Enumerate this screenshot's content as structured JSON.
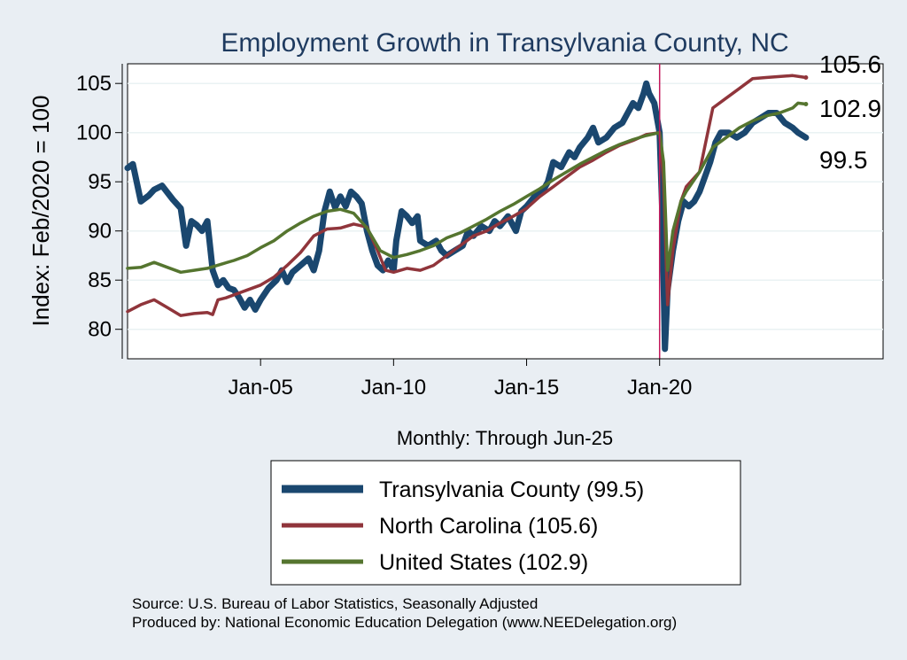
{
  "chart_data": {
    "type": "line",
    "title": "Employment Growth in Transylvania  County, NC",
    "xlabel": "Monthly: Through Jun-25",
    "ylabel": "Index: Feb/2020 = 100",
    "ylim": [
      77,
      107
    ],
    "y_ticks": [
      80,
      85,
      90,
      95,
      100,
      105
    ],
    "x_range": [
      2000.0,
      2028.4
    ],
    "x_ticks": [
      {
        "label": "Jan-05",
        "value": 2005.0
      },
      {
        "label": "Jan-10",
        "value": 2010.0
      },
      {
        "label": "Jan-15",
        "value": 2015.0
      },
      {
        "label": "Jan-20",
        "value": 2020.0
      }
    ],
    "reference_line_x": 2020.0,
    "series": [
      {
        "name": "Transylvania  County",
        "legend": "Transylvania  County (99.5)",
        "end_label": "99.5",
        "color": "#1a476f",
        "points": [
          [
            2000.0,
            96.4
          ],
          [
            2000.2,
            96.8
          ],
          [
            2000.5,
            93.0
          ],
          [
            2000.8,
            93.6
          ],
          [
            2001.0,
            94.2
          ],
          [
            2001.3,
            94.6
          ],
          [
            2001.7,
            93.2
          ],
          [
            2002.0,
            92.3
          ],
          [
            2002.2,
            88.5
          ],
          [
            2002.4,
            91.0
          ],
          [
            2002.6,
            90.6
          ],
          [
            2002.8,
            90.0
          ],
          [
            2003.0,
            91.0
          ],
          [
            2003.2,
            86.0
          ],
          [
            2003.4,
            84.5
          ],
          [
            2003.6,
            85.0
          ],
          [
            2003.8,
            84.2
          ],
          [
            2004.0,
            84.0
          ],
          [
            2004.2,
            83.2
          ],
          [
            2004.4,
            82.2
          ],
          [
            2004.6,
            83.0
          ],
          [
            2004.8,
            82.0
          ],
          [
            2005.0,
            83.0
          ],
          [
            2005.3,
            84.2
          ],
          [
            2005.6,
            85.0
          ],
          [
            2005.8,
            86.0
          ],
          [
            2006.0,
            84.8
          ],
          [
            2006.2,
            85.8
          ],
          [
            2006.5,
            86.5
          ],
          [
            2006.8,
            87.2
          ],
          [
            2007.0,
            86.0
          ],
          [
            2007.2,
            88.0
          ],
          [
            2007.4,
            92.0
          ],
          [
            2007.6,
            94.0
          ],
          [
            2007.8,
            92.4
          ],
          [
            2008.0,
            93.5
          ],
          [
            2008.2,
            92.5
          ],
          [
            2008.4,
            94.0
          ],
          [
            2008.6,
            93.5
          ],
          [
            2008.8,
            92.8
          ],
          [
            2009.0,
            90.0
          ],
          [
            2009.2,
            88.0
          ],
          [
            2009.4,
            86.5
          ],
          [
            2009.6,
            86.0
          ],
          [
            2009.8,
            87.0
          ],
          [
            2010.0,
            86.0
          ],
          [
            2010.1,
            89.0
          ],
          [
            2010.3,
            92.0
          ],
          [
            2010.5,
            91.5
          ],
          [
            2010.7,
            90.8
          ],
          [
            2010.9,
            91.5
          ],
          [
            2011.0,
            89.0
          ],
          [
            2011.3,
            88.5
          ],
          [
            2011.6,
            89.0
          ],
          [
            2011.8,
            88.0
          ],
          [
            2012.0,
            87.5
          ],
          [
            2012.3,
            88.0
          ],
          [
            2012.6,
            88.5
          ],
          [
            2012.8,
            90.0
          ],
          [
            2013.0,
            89.5
          ],
          [
            2013.3,
            90.5
          ],
          [
            2013.6,
            90.0
          ],
          [
            2013.8,
            91.0
          ],
          [
            2014.0,
            90.5
          ],
          [
            2014.3,
            91.5
          ],
          [
            2014.6,
            90.0
          ],
          [
            2014.8,
            92.0
          ],
          [
            2015.0,
            92.5
          ],
          [
            2015.3,
            93.5
          ],
          [
            2015.6,
            94.0
          ],
          [
            2015.8,
            95.0
          ],
          [
            2016.0,
            97.0
          ],
          [
            2016.3,
            96.5
          ],
          [
            2016.6,
            98.0
          ],
          [
            2016.8,
            97.5
          ],
          [
            2017.0,
            98.5
          ],
          [
            2017.3,
            99.5
          ],
          [
            2017.5,
            100.5
          ],
          [
            2017.7,
            99.0
          ],
          [
            2018.0,
            99.5
          ],
          [
            2018.3,
            100.5
          ],
          [
            2018.6,
            101.0
          ],
          [
            2018.8,
            102.0
          ],
          [
            2019.0,
            103.0
          ],
          [
            2019.2,
            102.5
          ],
          [
            2019.4,
            104.0
          ],
          [
            2019.5,
            105.0
          ],
          [
            2019.6,
            104.0
          ],
          [
            2019.8,
            103.0
          ],
          [
            2020.0,
            100.0
          ],
          [
            2020.1,
            92.0
          ],
          [
            2020.2,
            78.0
          ],
          [
            2020.3,
            84.0
          ],
          [
            2020.5,
            88.0
          ],
          [
            2020.7,
            91.0
          ],
          [
            2020.9,
            93.0
          ],
          [
            2021.1,
            92.5
          ],
          [
            2021.3,
            93.0
          ],
          [
            2021.5,
            94.0
          ],
          [
            2021.7,
            95.5
          ],
          [
            2021.9,
            97.0
          ],
          [
            2022.1,
            99.0
          ],
          [
            2022.3,
            100.0
          ],
          [
            2022.6,
            100.0
          ],
          [
            2022.9,
            99.5
          ],
          [
            2023.2,
            100.0
          ],
          [
            2023.5,
            101.0
          ],
          [
            2023.8,
            101.5
          ],
          [
            2024.1,
            102.0
          ],
          [
            2024.4,
            102.0
          ],
          [
            2024.7,
            101.0
          ],
          [
            2025.0,
            100.5
          ],
          [
            2025.2,
            100.0
          ],
          [
            2025.5,
            99.5
          ]
        ]
      },
      {
        "name": "North Carolina",
        "legend": "North Carolina (105.6)",
        "end_label": "105.6",
        "color": "#90353b",
        "points": [
          [
            2000.0,
            81.8
          ],
          [
            2000.5,
            82.5
          ],
          [
            2001.0,
            83.0
          ],
          [
            2001.5,
            82.2
          ],
          [
            2002.0,
            81.4
          ],
          [
            2002.5,
            81.6
          ],
          [
            2003.0,
            81.7
          ],
          [
            2003.2,
            81.5
          ],
          [
            2003.4,
            83.0
          ],
          [
            2003.7,
            83.2
          ],
          [
            2004.0,
            83.5
          ],
          [
            2004.5,
            84.0
          ],
          [
            2005.0,
            84.5
          ],
          [
            2005.5,
            85.3
          ],
          [
            2006.0,
            86.5
          ],
          [
            2006.5,
            87.8
          ],
          [
            2007.0,
            89.5
          ],
          [
            2007.5,
            90.2
          ],
          [
            2008.0,
            90.3
          ],
          [
            2008.5,
            90.7
          ],
          [
            2009.0,
            90.4
          ],
          [
            2009.4,
            88.0
          ],
          [
            2009.7,
            86.0
          ],
          [
            2010.0,
            85.8
          ],
          [
            2010.5,
            86.2
          ],
          [
            2011.0,
            86.0
          ],
          [
            2011.5,
            86.5
          ],
          [
            2012.0,
            87.5
          ],
          [
            2012.5,
            88.5
          ],
          [
            2013.0,
            89.5
          ],
          [
            2013.5,
            90.0
          ],
          [
            2014.0,
            90.8
          ],
          [
            2014.5,
            91.5
          ],
          [
            2015.0,
            92.3
          ],
          [
            2015.5,
            93.5
          ],
          [
            2016.0,
            94.5
          ],
          [
            2016.5,
            95.5
          ],
          [
            2017.0,
            96.5
          ],
          [
            2017.5,
            97.2
          ],
          [
            2018.0,
            98.0
          ],
          [
            2018.5,
            98.7
          ],
          [
            2019.0,
            99.2
          ],
          [
            2019.5,
            99.8
          ],
          [
            2020.0,
            100.0
          ],
          [
            2020.15,
            95.0
          ],
          [
            2020.3,
            82.5
          ],
          [
            2020.5,
            88.0
          ],
          [
            2020.8,
            93.0
          ],
          [
            2021.0,
            94.5
          ],
          [
            2021.5,
            96.0
          ],
          [
            2022.0,
            102.5
          ],
          [
            2022.5,
            103.5
          ],
          [
            2023.0,
            104.5
          ],
          [
            2023.5,
            105.5
          ],
          [
            2024.0,
            105.6
          ],
          [
            2024.5,
            105.7
          ],
          [
            2025.0,
            105.8
          ],
          [
            2025.5,
            105.6
          ]
        ]
      },
      {
        "name": "United States",
        "legend": "United States (102.9)",
        "end_label": "102.9",
        "color": "#55752f",
        "points": [
          [
            2000.0,
            86.2
          ],
          [
            2000.5,
            86.3
          ],
          [
            2001.0,
            86.8
          ],
          [
            2001.5,
            86.3
          ],
          [
            2002.0,
            85.8
          ],
          [
            2002.5,
            86.0
          ],
          [
            2003.0,
            86.2
          ],
          [
            2003.5,
            86.6
          ],
          [
            2004.0,
            87.0
          ],
          [
            2004.5,
            87.5
          ],
          [
            2005.0,
            88.3
          ],
          [
            2005.5,
            89.0
          ],
          [
            2006.0,
            90.0
          ],
          [
            2006.5,
            90.8
          ],
          [
            2007.0,
            91.5
          ],
          [
            2007.5,
            92.0
          ],
          [
            2008.0,
            92.2
          ],
          [
            2008.5,
            91.8
          ],
          [
            2009.0,
            90.3
          ],
          [
            2009.5,
            88.0
          ],
          [
            2010.0,
            87.3
          ],
          [
            2010.5,
            87.6
          ],
          [
            2011.0,
            88.0
          ],
          [
            2011.5,
            88.5
          ],
          [
            2012.0,
            89.3
          ],
          [
            2012.5,
            89.8
          ],
          [
            2013.0,
            90.5
          ],
          [
            2013.5,
            91.2
          ],
          [
            2014.0,
            92.0
          ],
          [
            2014.5,
            92.7
          ],
          [
            2015.0,
            93.5
          ],
          [
            2015.5,
            94.3
          ],
          [
            2016.0,
            95.2
          ],
          [
            2016.5,
            96.0
          ],
          [
            2017.0,
            96.8
          ],
          [
            2017.5,
            97.5
          ],
          [
            2018.0,
            98.2
          ],
          [
            2018.5,
            98.8
          ],
          [
            2019.0,
            99.3
          ],
          [
            2019.5,
            99.7
          ],
          [
            2020.0,
            100.0
          ],
          [
            2020.15,
            97.0
          ],
          [
            2020.3,
            86.0
          ],
          [
            2020.5,
            90.0
          ],
          [
            2020.8,
            93.0
          ],
          [
            2021.0,
            94.0
          ],
          [
            2021.5,
            96.0
          ],
          [
            2022.0,
            98.5
          ],
          [
            2022.5,
            99.5
          ],
          [
            2023.0,
            100.5
          ],
          [
            2023.5,
            101.2
          ],
          [
            2024.0,
            101.7
          ],
          [
            2024.5,
            102.0
          ],
          [
            2025.0,
            102.5
          ],
          [
            2025.2,
            103.0
          ],
          [
            2025.5,
            102.9
          ]
        ]
      }
    ]
  },
  "footer": {
    "source": "Source: U.S. Bureau of Labor Statistics, Seasonally Adjusted",
    "produced_by": "Produced by: National Economic Education Delegation (www.NEEDelegation.org)"
  }
}
